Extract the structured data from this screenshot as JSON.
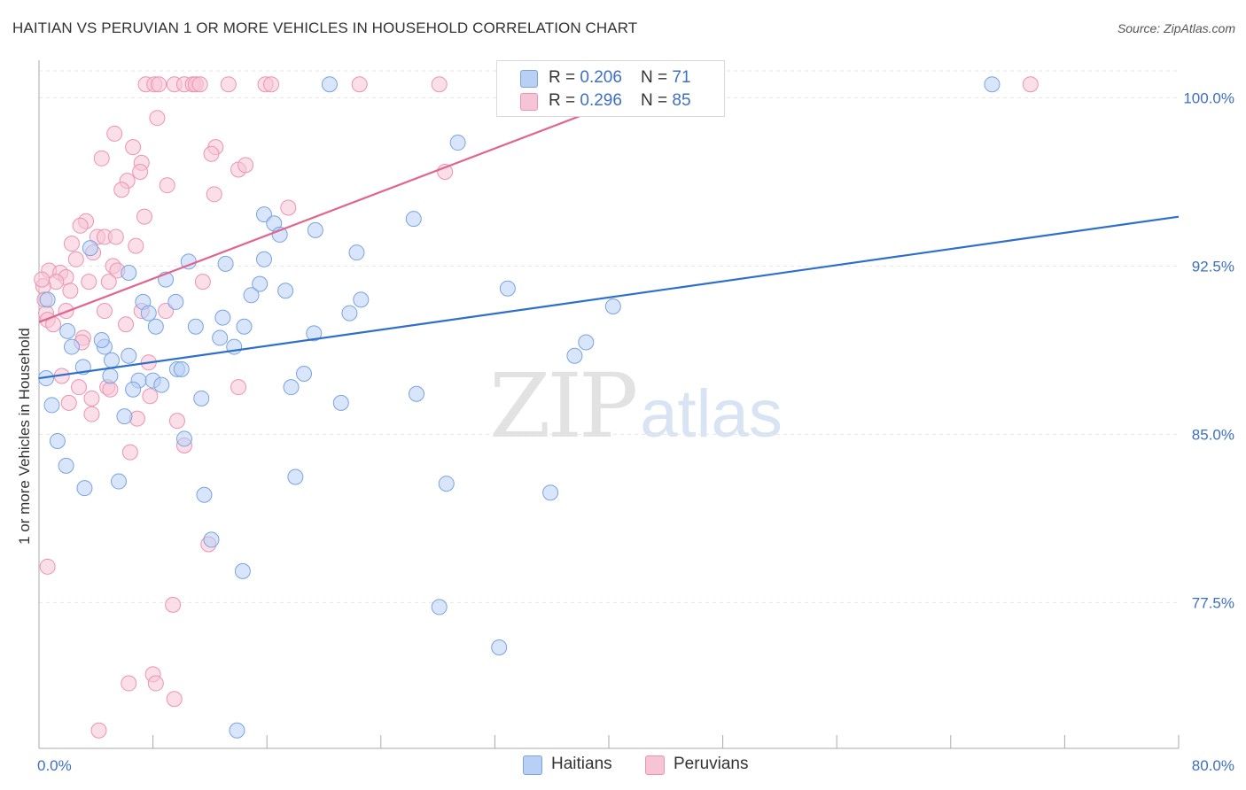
{
  "title": "HAITIAN VS PERUVIAN 1 OR MORE VEHICLES IN HOUSEHOLD CORRELATION CHART",
  "source_label": "Source: ZipAtlas.com",
  "watermark": {
    "zip": "ZIP",
    "atlas": "atlas"
  },
  "colors": {
    "haitians_fill": "#b8d0f5",
    "haitians_stroke": "#7aa3e0",
    "haitians_line": "#2e6fcb",
    "peruvians_fill": "#f7c4d5",
    "peruvians_stroke": "#ec93b1",
    "peruvians_line": "#e0668f",
    "grid": "#e6e6e6",
    "axis_text": "#3d6fc4"
  },
  "legend": {
    "rows": [
      {
        "r_label": "R = ",
        "r_value": "0.206",
        "n_label": "N = ",
        "n_value": " 71"
      },
      {
        "r_label": "R = ",
        "r_value": "0.296",
        "n_label": "N = ",
        "n_value": "85"
      }
    ]
  },
  "bottom_legend": {
    "haitians": "Haitians",
    "peruvians": "Peruvians"
  },
  "chart_data": {
    "type": "scatter",
    "title": "HAITIAN VS PERUVIAN 1 OR MORE VEHICLES IN HOUSEHOLD CORRELATION CHART",
    "xlabel": "",
    "ylabel": "1 or more Vehicles in Household",
    "xlim": [
      0,
      80
    ],
    "ylim": [
      71.0,
      101.2
    ],
    "x_tick_labels": [
      "0.0%",
      "80.0%"
    ],
    "y_ticks": [
      77.5,
      85.0,
      92.5,
      100.0
    ],
    "y_tick_labels": [
      "77.5%",
      "85.0%",
      "92.5%",
      "100.0%"
    ],
    "grid": true,
    "legend_position": "top-center",
    "series": [
      {
        "name": "Haitians",
        "R": 0.206,
        "N": 71,
        "trend": {
          "x": [
            0,
            80
          ],
          "y": [
            87.5,
            94.7
          ]
        },
        "points": [
          {
            "x": 20.4,
            "y": 100.6
          },
          {
            "x": 66.9,
            "y": 100.6
          },
          {
            "x": 29.4,
            "y": 98.0
          },
          {
            "x": 15.8,
            "y": 94.8
          },
          {
            "x": 26.3,
            "y": 94.6
          },
          {
            "x": 16.5,
            "y": 94.4
          },
          {
            "x": 16.9,
            "y": 93.9
          },
          {
            "x": 19.4,
            "y": 94.1
          },
          {
            "x": 3.6,
            "y": 93.3
          },
          {
            "x": 22.3,
            "y": 93.1
          },
          {
            "x": 10.5,
            "y": 92.7
          },
          {
            "x": 13.1,
            "y": 92.6
          },
          {
            "x": 15.8,
            "y": 92.8
          },
          {
            "x": 6.3,
            "y": 92.2
          },
          {
            "x": 8.9,
            "y": 91.9
          },
          {
            "x": 15.5,
            "y": 91.7
          },
          {
            "x": 17.3,
            "y": 91.4
          },
          {
            "x": 32.9,
            "y": 91.5
          },
          {
            "x": 14.9,
            "y": 91.2
          },
          {
            "x": 22.6,
            "y": 91.0
          },
          {
            "x": 7.3,
            "y": 90.9
          },
          {
            "x": 9.6,
            "y": 90.9
          },
          {
            "x": 21.8,
            "y": 90.4
          },
          {
            "x": 40.3,
            "y": 90.7
          },
          {
            "x": 7.7,
            "y": 90.4
          },
          {
            "x": 8.2,
            "y": 89.8
          },
          {
            "x": 11.0,
            "y": 89.8
          },
          {
            "x": 14.4,
            "y": 89.8
          },
          {
            "x": 19.3,
            "y": 89.5
          },
          {
            "x": 12.7,
            "y": 89.3
          },
          {
            "x": 13.7,
            "y": 88.9
          },
          {
            "x": 2.3,
            "y": 88.9
          },
          {
            "x": 4.6,
            "y": 88.9
          },
          {
            "x": 6.3,
            "y": 88.5
          },
          {
            "x": 5.1,
            "y": 88.3
          },
          {
            "x": 3.1,
            "y": 88.0
          },
          {
            "x": 37.6,
            "y": 88.5
          },
          {
            "x": 38.4,
            "y": 89.1
          },
          {
            "x": 0.5,
            "y": 87.5
          },
          {
            "x": 5.0,
            "y": 87.6
          },
          {
            "x": 7.0,
            "y": 87.4
          },
          {
            "x": 8.0,
            "y": 87.4
          },
          {
            "x": 9.7,
            "y": 87.9
          },
          {
            "x": 10.0,
            "y": 87.9
          },
          {
            "x": 18.6,
            "y": 87.7
          },
          {
            "x": 17.7,
            "y": 87.1
          },
          {
            "x": 6.6,
            "y": 87.0
          },
          {
            "x": 8.6,
            "y": 87.2
          },
          {
            "x": 11.4,
            "y": 86.6
          },
          {
            "x": 26.5,
            "y": 86.8
          },
          {
            "x": 21.2,
            "y": 86.4
          },
          {
            "x": 0.9,
            "y": 86.3
          },
          {
            "x": 6.0,
            "y": 85.8
          },
          {
            "x": 1.3,
            "y": 84.7
          },
          {
            "x": 10.2,
            "y": 84.8
          },
          {
            "x": 1.9,
            "y": 83.6
          },
          {
            "x": 18.0,
            "y": 83.1
          },
          {
            "x": 5.6,
            "y": 82.9
          },
          {
            "x": 3.2,
            "y": 82.6
          },
          {
            "x": 28.6,
            "y": 82.8
          },
          {
            "x": 35.9,
            "y": 82.4
          },
          {
            "x": 11.6,
            "y": 82.3
          },
          {
            "x": 12.1,
            "y": 80.3
          },
          {
            "x": 14.3,
            "y": 78.9
          },
          {
            "x": 28.1,
            "y": 77.3
          },
          {
            "x": 32.3,
            "y": 75.5
          },
          {
            "x": 13.9,
            "y": 71.8
          },
          {
            "x": 0.6,
            "y": 91.0
          },
          {
            "x": 4.4,
            "y": 89.2
          },
          {
            "x": 2.0,
            "y": 89.6
          },
          {
            "x": 12.9,
            "y": 90.2
          }
        ]
      },
      {
        "name": "Peruvians",
        "R": 0.296,
        "N": 85,
        "trend": {
          "x": [
            0,
            43.4
          ],
          "y": [
            90.0,
            100.5
          ]
        },
        "points": [
          {
            "x": 7.5,
            "y": 100.6
          },
          {
            "x": 8.1,
            "y": 100.6
          },
          {
            "x": 8.4,
            "y": 100.6
          },
          {
            "x": 9.5,
            "y": 100.6
          },
          {
            "x": 10.2,
            "y": 100.6
          },
          {
            "x": 10.8,
            "y": 100.6
          },
          {
            "x": 11.0,
            "y": 100.6
          },
          {
            "x": 11.3,
            "y": 100.6
          },
          {
            "x": 13.3,
            "y": 100.6
          },
          {
            "x": 15.9,
            "y": 100.6
          },
          {
            "x": 16.3,
            "y": 100.6
          },
          {
            "x": 22.5,
            "y": 100.6
          },
          {
            "x": 28.1,
            "y": 100.6
          },
          {
            "x": 69.6,
            "y": 100.6
          },
          {
            "x": 8.3,
            "y": 99.1
          },
          {
            "x": 5.3,
            "y": 98.4
          },
          {
            "x": 6.6,
            "y": 97.8
          },
          {
            "x": 12.4,
            "y": 97.8
          },
          {
            "x": 4.4,
            "y": 97.3
          },
          {
            "x": 7.2,
            "y": 97.1
          },
          {
            "x": 12.1,
            "y": 97.5
          },
          {
            "x": 7.1,
            "y": 96.7
          },
          {
            "x": 14.0,
            "y": 96.8
          },
          {
            "x": 14.5,
            "y": 97.0
          },
          {
            "x": 28.5,
            "y": 96.7
          },
          {
            "x": 6.2,
            "y": 96.3
          },
          {
            "x": 5.8,
            "y": 95.9
          },
          {
            "x": 9.0,
            "y": 96.1
          },
          {
            "x": 12.3,
            "y": 95.7
          },
          {
            "x": 17.5,
            "y": 95.1
          },
          {
            "x": 3.3,
            "y": 94.5
          },
          {
            "x": 7.4,
            "y": 94.7
          },
          {
            "x": 2.9,
            "y": 94.3
          },
          {
            "x": 4.1,
            "y": 93.8
          },
          {
            "x": 4.6,
            "y": 93.8
          },
          {
            "x": 5.4,
            "y": 93.8
          },
          {
            "x": 2.3,
            "y": 93.5
          },
          {
            "x": 6.8,
            "y": 93.4
          },
          {
            "x": 3.8,
            "y": 93.1
          },
          {
            "x": 2.6,
            "y": 92.8
          },
          {
            "x": 5.2,
            "y": 92.5
          },
          {
            "x": 5.5,
            "y": 92.3
          },
          {
            "x": 0.7,
            "y": 92.3
          },
          {
            "x": 1.5,
            "y": 92.2
          },
          {
            "x": 1.9,
            "y": 92.0
          },
          {
            "x": 1.2,
            "y": 91.8
          },
          {
            "x": 3.5,
            "y": 91.8
          },
          {
            "x": 4.9,
            "y": 91.8
          },
          {
            "x": 11.5,
            "y": 91.8
          },
          {
            "x": 0.3,
            "y": 91.6
          },
          {
            "x": 2.2,
            "y": 91.4
          },
          {
            "x": 0.4,
            "y": 91.0
          },
          {
            "x": 0.5,
            "y": 90.4
          },
          {
            "x": 1.9,
            "y": 90.5
          },
          {
            "x": 4.6,
            "y": 90.5
          },
          {
            "x": 7.2,
            "y": 90.5
          },
          {
            "x": 0.6,
            "y": 90.1
          },
          {
            "x": 1.0,
            "y": 89.9
          },
          {
            "x": 6.1,
            "y": 89.9
          },
          {
            "x": 3.1,
            "y": 89.3
          },
          {
            "x": 7.7,
            "y": 88.2
          },
          {
            "x": 1.6,
            "y": 87.6
          },
          {
            "x": 2.8,
            "y": 87.1
          },
          {
            "x": 4.8,
            "y": 87.1
          },
          {
            "x": 5.0,
            "y": 87.0
          },
          {
            "x": 7.8,
            "y": 86.7
          },
          {
            "x": 14.0,
            "y": 87.1
          },
          {
            "x": 3.7,
            "y": 86.6
          },
          {
            "x": 2.1,
            "y": 86.4
          },
          {
            "x": 3.7,
            "y": 85.9
          },
          {
            "x": 6.9,
            "y": 85.7
          },
          {
            "x": 9.7,
            "y": 85.6
          },
          {
            "x": 10.2,
            "y": 84.5
          },
          {
            "x": 6.4,
            "y": 84.2
          },
          {
            "x": 11.9,
            "y": 80.1
          },
          {
            "x": 0.6,
            "y": 79.1
          },
          {
            "x": 9.4,
            "y": 77.4
          },
          {
            "x": 8.0,
            "y": 74.3
          },
          {
            "x": 6.3,
            "y": 73.9
          },
          {
            "x": 8.2,
            "y": 73.9
          },
          {
            "x": 9.5,
            "y": 73.2
          },
          {
            "x": 4.2,
            "y": 71.8
          },
          {
            "x": 0.2,
            "y": 91.9
          },
          {
            "x": 3.0,
            "y": 89.1
          },
          {
            "x": 8.9,
            "y": 90.5
          }
        ]
      }
    ]
  }
}
